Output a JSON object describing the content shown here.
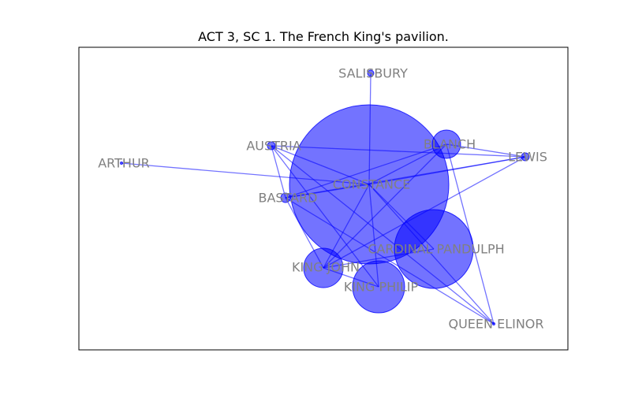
{
  "title": "ACT 3, SC 1. The French King's pavilion.",
  "colors": {
    "node": "#0000ff",
    "edge": "#0000ff",
    "label": "#808080",
    "frame": "#000000"
  },
  "nodes": [
    {
      "id": "constance",
      "label": "CONSTANCE"
    },
    {
      "id": "cardinal_pandulph",
      "label": "CARDINAL PANDULPH"
    },
    {
      "id": "king_philip",
      "label": "KING PHILIP"
    },
    {
      "id": "king_john",
      "label": "KING JOHN"
    },
    {
      "id": "blanch",
      "label": "BLANCH"
    },
    {
      "id": "salisbury",
      "label": "SALISBURY"
    },
    {
      "id": "austria",
      "label": "AUSTRIA"
    },
    {
      "id": "lewis",
      "label": "LEWIS"
    },
    {
      "id": "bastard",
      "label": "BASTARD"
    },
    {
      "id": "arthur",
      "label": "ARTHUR"
    },
    {
      "id": "queen_elinor",
      "label": "QUEEN ELINOR"
    }
  ],
  "edges": [
    [
      "arthur",
      "constance"
    ],
    [
      "salisbury",
      "constance"
    ],
    [
      "constance",
      "blanch"
    ],
    [
      "constance",
      "lewis"
    ],
    [
      "constance",
      "austria"
    ],
    [
      "constance",
      "bastard"
    ],
    [
      "constance",
      "king_john"
    ],
    [
      "constance",
      "king_philip"
    ],
    [
      "constance",
      "cardinal_pandulph"
    ],
    [
      "constance",
      "queen_elinor"
    ],
    [
      "austria",
      "bastard"
    ],
    [
      "austria",
      "king_philip"
    ],
    [
      "austria",
      "lewis"
    ],
    [
      "austria",
      "queen_elinor"
    ],
    [
      "blanch",
      "lewis"
    ],
    [
      "blanch",
      "bastard"
    ],
    [
      "blanch",
      "king_john"
    ],
    [
      "blanch",
      "queen_elinor"
    ],
    [
      "lewis",
      "bastard"
    ],
    [
      "lewis",
      "king_john"
    ],
    [
      "bastard",
      "king_john"
    ],
    [
      "bastard",
      "queen_elinor"
    ],
    [
      "king_john",
      "cardinal_pandulph"
    ],
    [
      "king_john",
      "king_philip"
    ]
  ]
}
